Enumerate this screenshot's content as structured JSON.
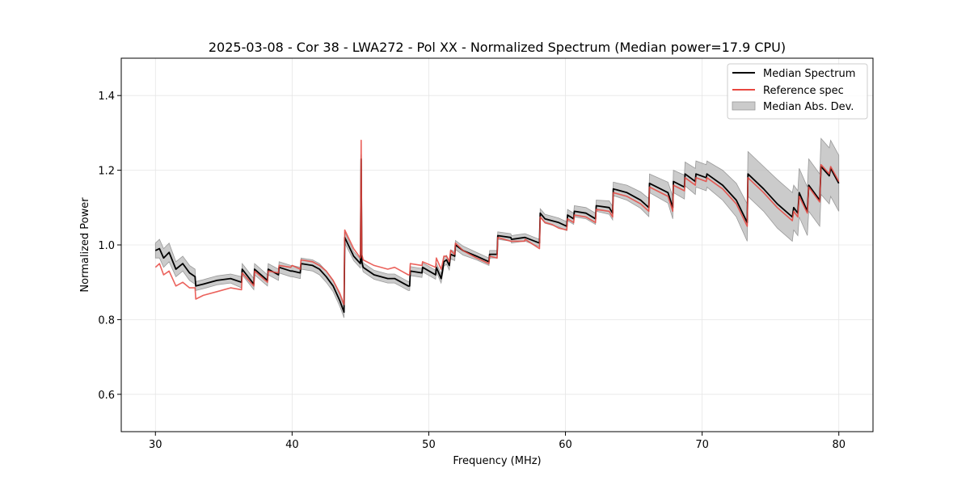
{
  "chart_data": {
    "type": "line",
    "title": "2025-03-08 - Cor 38 - LWA272 - Pol XX - Normalized Spectrum (Median power=17.9 CPU)",
    "xlabel": "Frequency (MHz)",
    "ylabel": "Normalized Power",
    "xlim": [
      27.5,
      82.5
    ],
    "ylim": [
      0.5,
      1.5
    ],
    "xticks": [
      30,
      40,
      50,
      60,
      70,
      80
    ],
    "yticks": [
      0.6,
      0.8,
      1.0,
      1.2,
      1.4
    ],
    "xtick_labels": [
      "30",
      "40",
      "50",
      "60",
      "70",
      "80"
    ],
    "ytick_labels": [
      "0.6",
      "0.8",
      "1.0",
      "1.2",
      "1.4"
    ],
    "grid": true,
    "legend_position": "top-right",
    "legend": [
      "Median Spectrum",
      "Reference spec",
      "Median Abs. Dev."
    ],
    "colors": {
      "median": "#000000",
      "reference": "#e8473f",
      "band": "#b5b5b5",
      "grid": "#e6e6e6"
    },
    "series": [
      {
        "name": "Median Spectrum",
        "x": [
          30.0,
          30.3,
          30.6,
          31.0,
          31.5,
          32.0,
          32.5,
          32.9,
          32.95,
          33.5,
          34.5,
          35.5,
          36.3,
          36.35,
          37.2,
          37.25,
          38.2,
          38.25,
          39.0,
          39.05,
          39.9,
          40.0,
          40.6,
          40.65,
          41.5,
          42.0,
          42.5,
          43.0,
          43.5,
          43.8,
          43.85,
          44.5,
          45.0,
          45.05,
          45.1,
          45.2,
          46.0,
          47.0,
          47.5,
          48.0,
          48.5,
          48.6,
          48.65,
          49.5,
          49.55,
          50.5,
          50.55,
          50.9,
          51.0,
          51.1,
          51.3,
          51.5,
          51.6,
          51.9,
          51.95,
          52.5,
          53.5,
          54.4,
          54.45,
          55.0,
          55.05,
          56.0,
          56.05,
          57.0,
          57.05,
          58.1,
          58.15,
          58.5,
          59.0,
          59.5,
          60.1,
          60.15,
          60.6,
          60.65,
          61.5,
          62.2,
          62.25,
          63.2,
          63.45,
          63.5,
          64.5,
          65.5,
          66.1,
          66.15,
          67.5,
          67.85,
          67.9,
          68.7,
          68.75,
          69.5,
          69.55,
          70.3,
          70.35,
          71.5,
          72.5,
          73.3,
          73.35,
          74.5,
          75.5,
          76.6,
          76.7,
          77.0,
          77.1,
          77.7,
          77.8,
          78.6,
          78.7,
          79.3,
          79.4,
          80.0
        ],
        "values": [
          0.985,
          0.99,
          0.965,
          0.98,
          0.935,
          0.95,
          0.925,
          0.915,
          0.89,
          0.895,
          0.905,
          0.91,
          0.9,
          0.935,
          0.895,
          0.935,
          0.905,
          0.935,
          0.92,
          0.94,
          0.93,
          0.93,
          0.925,
          0.95,
          0.945,
          0.935,
          0.915,
          0.89,
          0.85,
          0.82,
          1.02,
          0.97,
          0.95,
          1.23,
          0.955,
          0.94,
          0.92,
          0.91,
          0.91,
          0.9,
          0.89,
          0.89,
          0.93,
          0.925,
          0.94,
          0.92,
          0.94,
          0.91,
          0.93,
          0.955,
          0.96,
          0.945,
          0.975,
          0.97,
          1.0,
          0.985,
          0.97,
          0.955,
          0.975,
          0.975,
          1.025,
          1.02,
          1.015,
          1.02,
          1.02,
          1.005,
          1.085,
          1.07,
          1.065,
          1.06,
          1.05,
          1.08,
          1.07,
          1.09,
          1.085,
          1.07,
          1.105,
          1.1,
          1.085,
          1.15,
          1.14,
          1.12,
          1.1,
          1.165,
          1.14,
          1.1,
          1.17,
          1.155,
          1.19,
          1.17,
          1.19,
          1.18,
          1.19,
          1.16,
          1.12,
          1.06,
          1.19,
          1.15,
          1.11,
          1.075,
          1.1,
          1.085,
          1.14,
          1.09,
          1.16,
          1.12,
          1.21,
          1.185,
          1.205,
          1.165
        ]
      },
      {
        "name": "Reference spec",
        "x": [
          30.0,
          30.3,
          30.6,
          31.0,
          31.5,
          32.0,
          32.5,
          32.9,
          32.95,
          33.5,
          34.5,
          35.5,
          36.3,
          36.35,
          37.2,
          37.25,
          38.2,
          38.25,
          39.0,
          39.05,
          39.9,
          40.0,
          40.6,
          40.65,
          41.5,
          42.0,
          42.5,
          43.0,
          43.5,
          43.8,
          43.85,
          44.5,
          45.0,
          45.05,
          45.1,
          45.2,
          46.0,
          47.0,
          47.5,
          48.0,
          48.5,
          48.6,
          48.65,
          49.5,
          49.55,
          50.5,
          50.55,
          50.9,
          51.0,
          51.1,
          51.3,
          51.5,
          51.6,
          51.9,
          51.95,
          52.5,
          53.5,
          54.4,
          54.45,
          55.0,
          55.05,
          56.0,
          56.05,
          57.0,
          57.05,
          58.1,
          58.15,
          58.5,
          59.0,
          59.5,
          60.1,
          60.15,
          60.6,
          60.65,
          61.5,
          62.2,
          62.25,
          63.2,
          63.45,
          63.5,
          64.5,
          65.5,
          66.1,
          66.15,
          67.5,
          67.85,
          67.9,
          68.7,
          68.75,
          69.5,
          69.55,
          70.3,
          70.35,
          71.5,
          72.5,
          73.3,
          73.35,
          74.5,
          75.5,
          76.6,
          76.7,
          77.0,
          77.1,
          77.7,
          77.8,
          78.6,
          78.7,
          79.3,
          79.4,
          80.0
        ],
        "values": [
          0.94,
          0.95,
          0.92,
          0.93,
          0.89,
          0.9,
          0.885,
          0.885,
          0.855,
          0.865,
          0.875,
          0.885,
          0.88,
          0.925,
          0.89,
          0.93,
          0.9,
          0.93,
          0.925,
          0.945,
          0.94,
          0.945,
          0.935,
          0.96,
          0.955,
          0.945,
          0.93,
          0.905,
          0.87,
          0.84,
          1.04,
          0.99,
          0.965,
          1.28,
          0.975,
          0.96,
          0.945,
          0.935,
          0.94,
          0.93,
          0.92,
          0.92,
          0.95,
          0.945,
          0.955,
          0.94,
          0.965,
          0.935,
          0.95,
          0.97,
          0.97,
          0.955,
          0.985,
          0.975,
          1.005,
          0.985,
          0.965,
          0.95,
          0.97,
          0.965,
          1.02,
          1.01,
          1.01,
          1.01,
          1.015,
          0.99,
          1.075,
          1.06,
          1.055,
          1.045,
          1.04,
          1.07,
          1.06,
          1.08,
          1.075,
          1.06,
          1.095,
          1.09,
          1.075,
          1.14,
          1.13,
          1.11,
          1.09,
          1.155,
          1.13,
          1.09,
          1.16,
          1.145,
          1.18,
          1.16,
          1.18,
          1.17,
          1.18,
          1.15,
          1.11,
          1.05,
          1.18,
          1.14,
          1.1,
          1.065,
          1.09,
          1.075,
          1.13,
          1.085,
          1.155,
          1.115,
          1.215,
          1.19,
          1.21,
          1.17
        ]
      },
      {
        "name": "Median Abs. Dev.",
        "x": [
          30.0,
          30.3,
          30.6,
          31.0,
          31.5,
          32.0,
          32.5,
          32.9,
          32.95,
          33.5,
          34.5,
          35.5,
          36.3,
          36.35,
          37.2,
          37.25,
          38.2,
          38.25,
          39.0,
          39.05,
          39.9,
          40.0,
          40.6,
          40.65,
          41.5,
          42.0,
          42.5,
          43.0,
          43.5,
          43.8,
          43.85,
          44.5,
          45.0,
          45.05,
          45.1,
          45.2,
          46.0,
          47.0,
          47.5,
          48.0,
          48.5,
          48.6,
          48.65,
          49.5,
          49.55,
          50.5,
          50.55,
          50.9,
          51.0,
          51.1,
          51.3,
          51.5,
          51.6,
          51.9,
          51.95,
          52.5,
          53.5,
          54.4,
          54.45,
          55.0,
          55.05,
          56.0,
          56.05,
          57.0,
          57.05,
          58.1,
          58.15,
          58.5,
          59.0,
          59.5,
          60.1,
          60.15,
          60.6,
          60.65,
          61.5,
          62.2,
          62.25,
          63.2,
          63.45,
          63.5,
          64.5,
          65.5,
          66.1,
          66.15,
          67.5,
          67.85,
          67.9,
          68.7,
          68.75,
          69.5,
          69.55,
          70.3,
          70.35,
          71.5,
          72.5,
          73.3,
          73.35,
          74.5,
          75.5,
          76.6,
          76.7,
          77.0,
          77.1,
          77.7,
          77.8,
          78.6,
          78.7,
          79.3,
          79.4,
          80.0
        ],
        "deviation": [
          0.02,
          0.025,
          0.025,
          0.025,
          0.02,
          0.02,
          0.02,
          0.02,
          0.012,
          0.012,
          0.012,
          0.012,
          0.015,
          0.015,
          0.015,
          0.015,
          0.015,
          0.015,
          0.015,
          0.015,
          0.015,
          0.015,
          0.015,
          0.015,
          0.015,
          0.015,
          0.015,
          0.015,
          0.015,
          0.015,
          0.015,
          0.012,
          0.012,
          0.012,
          0.012,
          0.012,
          0.012,
          0.012,
          0.012,
          0.012,
          0.012,
          0.012,
          0.012,
          0.012,
          0.012,
          0.012,
          0.012,
          0.012,
          0.012,
          0.012,
          0.012,
          0.012,
          0.012,
          0.012,
          0.012,
          0.012,
          0.01,
          0.01,
          0.01,
          0.01,
          0.01,
          0.01,
          0.01,
          0.01,
          0.01,
          0.01,
          0.012,
          0.012,
          0.012,
          0.012,
          0.012,
          0.015,
          0.015,
          0.015,
          0.015,
          0.015,
          0.015,
          0.018,
          0.018,
          0.018,
          0.02,
          0.022,
          0.024,
          0.025,
          0.028,
          0.03,
          0.03,
          0.032,
          0.032,
          0.035,
          0.035,
          0.035,
          0.035,
          0.04,
          0.045,
          0.05,
          0.06,
          0.06,
          0.065,
          0.065,
          0.06,
          0.06,
          0.065,
          0.065,
          0.07,
          0.07,
          0.075,
          0.075,
          0.075,
          0.075
        ]
      }
    ]
  }
}
